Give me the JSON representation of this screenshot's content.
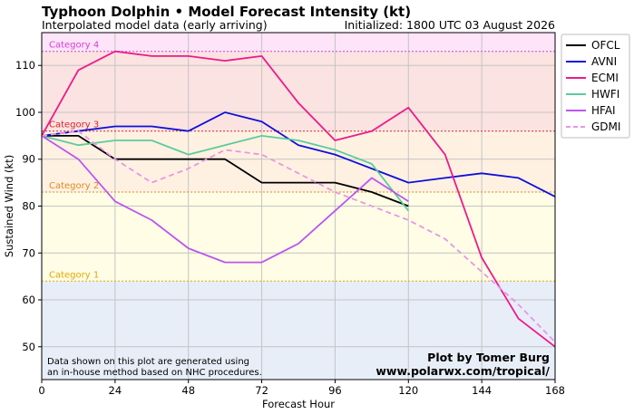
{
  "chart_data": {
    "type": "line",
    "title": "Typhoon Dolphin • Model Forecast Intensity (kt)",
    "subtitle": "Interpolated model data (early arriving)",
    "initialized": "Initialized: 1800 UTC 03 August 2026",
    "xlabel": "Forecast Hour",
    "ylabel": "Sustained Wind (kt)",
    "xlim": [
      0,
      168
    ],
    "ylim": [
      43,
      117
    ],
    "xticks": [
      0,
      24,
      48,
      72,
      96,
      120,
      144,
      168
    ],
    "yticks": [
      50,
      60,
      70,
      80,
      90,
      100,
      110
    ],
    "grid": true,
    "legend_position": "outside-right",
    "categories": [
      {
        "label": "Category 4",
        "threshold": 113,
        "color": "#d63cd6",
        "band_color": "#fde4f9"
      },
      {
        "label": "Category 3",
        "threshold": 96,
        "color": "#d62728",
        "band_color": "#fbe3e1"
      },
      {
        "label": "Category 2",
        "threshold": 83,
        "color": "#e08a1e",
        "band_color": "#fff1e2"
      },
      {
        "label": "Category 1",
        "threshold": 64,
        "color": "#e0a800",
        "band_color": "#fffde5"
      }
    ],
    "below_category_band_color": "#e7eef8",
    "series": [
      {
        "name": "OFCL",
        "color": "#000000",
        "dash": false,
        "x": [
          0,
          12,
          24,
          36,
          48,
          60,
          72,
          84,
          96,
          108,
          120
        ],
        "y": [
          95,
          95,
          90,
          90,
          90,
          90,
          85,
          85,
          85,
          83,
          80
        ]
      },
      {
        "name": "AVNI",
        "color": "#1010d8",
        "dash": false,
        "x": [
          0,
          12,
          24,
          36,
          48,
          60,
          72,
          84,
          96,
          108,
          120,
          132,
          144,
          156,
          168
        ],
        "y": [
          95,
          96,
          97,
          97,
          96,
          100,
          98,
          93,
          91,
          88,
          85,
          86,
          87,
          86,
          82
        ]
      },
      {
        "name": "ECMI",
        "color": "#ee1a8c",
        "dash": false,
        "x": [
          0,
          12,
          24,
          36,
          48,
          60,
          72,
          84,
          96,
          108,
          120,
          132,
          144,
          156,
          168
        ],
        "y": [
          95,
          109,
          113,
          112,
          112,
          111,
          112,
          102,
          94,
          96,
          101,
          91,
          69,
          56,
          50
        ]
      },
      {
        "name": "HWFI",
        "color": "#5ccc9c",
        "dash": false,
        "x": [
          0,
          12,
          24,
          36,
          48,
          60,
          72,
          84,
          96,
          108,
          120
        ],
        "y": [
          95,
          93,
          94,
          94,
          91,
          93,
          95,
          94,
          92,
          89,
          79
        ]
      },
      {
        "name": "HFAI",
        "color": "#bb55ee",
        "dash": false,
        "x": [
          0,
          12,
          24,
          36,
          48,
          60,
          72,
          84,
          96,
          108,
          120
        ],
        "y": [
          95,
          90,
          81,
          77,
          71,
          68,
          68,
          72,
          79,
          86,
          81
        ]
      },
      {
        "name": "GDMI",
        "color": "#e796e6",
        "dash": true,
        "x": [
          0,
          12,
          24,
          36,
          48,
          60,
          72,
          84,
          96,
          108,
          120,
          132,
          144,
          156,
          168
        ],
        "y": [
          95,
          96,
          90,
          85,
          88,
          92,
          91,
          87,
          83,
          80,
          77,
          73,
          66,
          59,
          51
        ]
      }
    ],
    "note": [
      "Data shown on this plot are generated using",
      "an in-house method based on NHC procedures."
    ],
    "credit": [
      "Plot by Tomer Burg",
      "www.polarwx.com/tropical/"
    ]
  }
}
